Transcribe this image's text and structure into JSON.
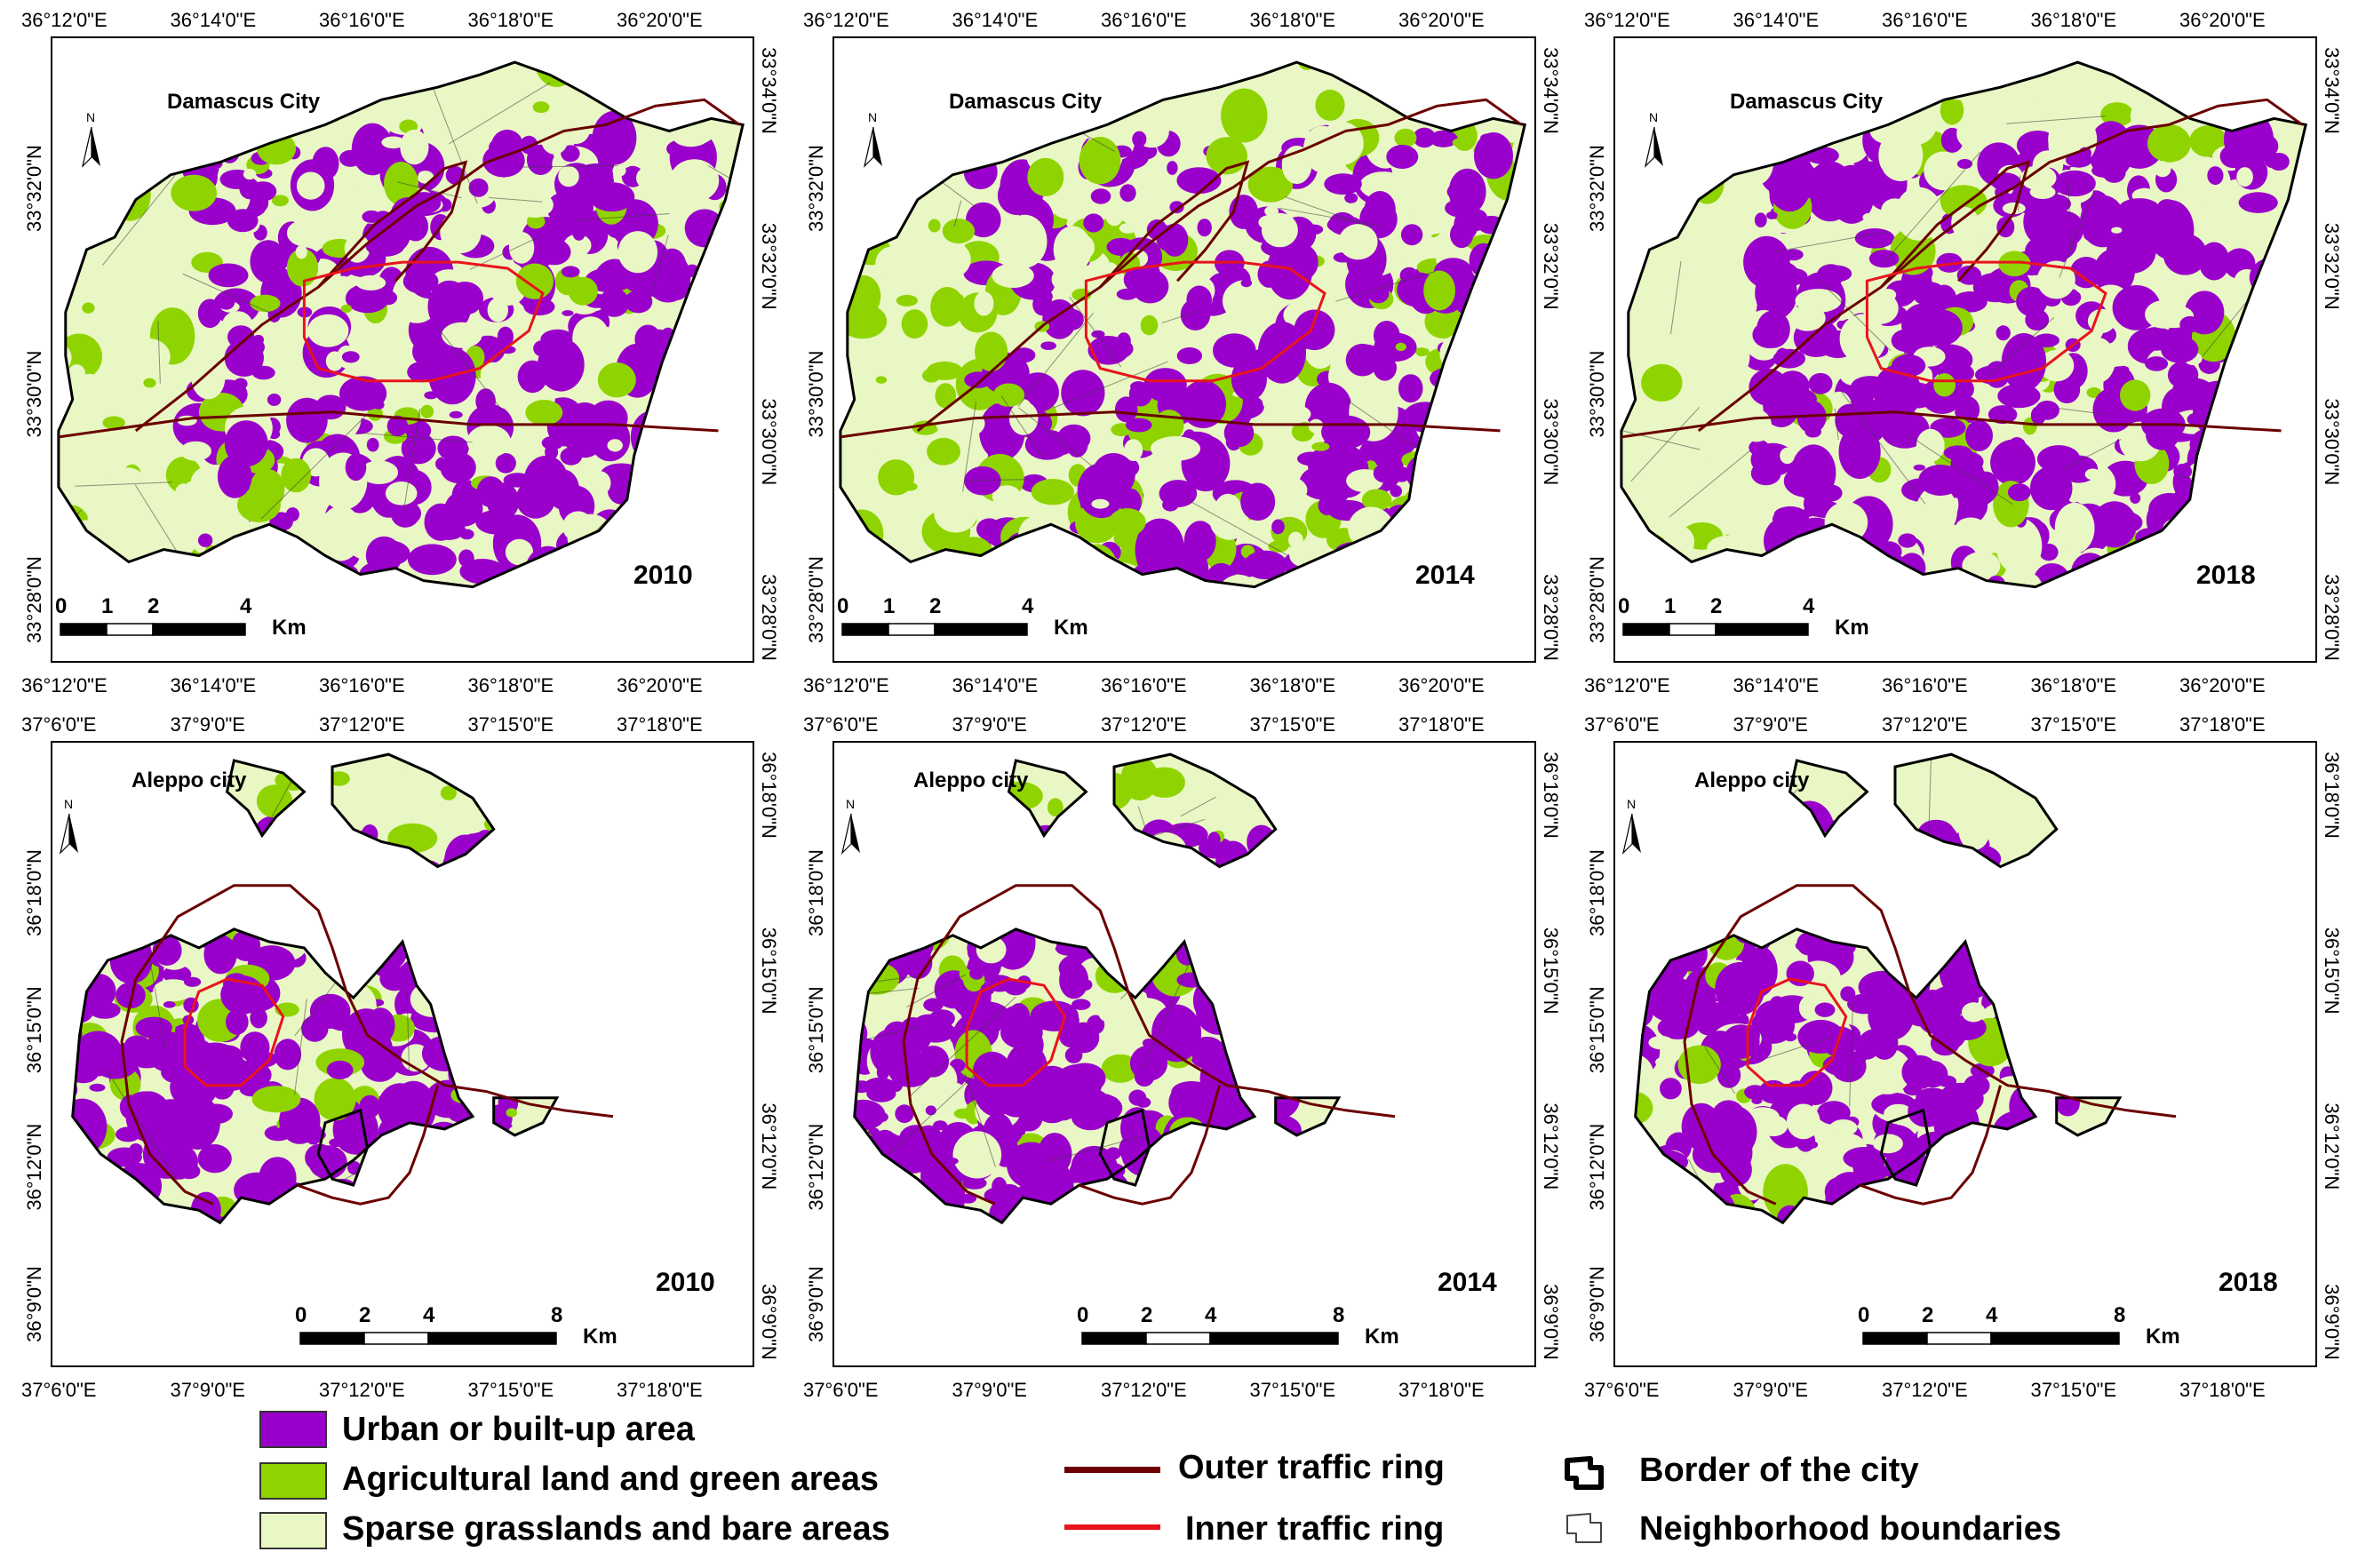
{
  "map_panels": [
    {
      "city": "Damascus City",
      "year": "2010",
      "kind": "dam",
      "top_ticks": [
        "36°12'0\"E",
        "36°14'0\"E",
        "36°16'0\"E",
        "36°18'0\"E",
        "36°20'0\"E"
      ],
      "bottom_ticks": [
        "36°12'0\"E",
        "36°14'0\"E",
        "36°16'0\"E",
        "36°18'0\"E",
        "36°20'0\"E"
      ],
      "left_ticks": [
        "33°32'0\"N",
        "33°30'0\"N",
        "33°28'0\"N"
      ],
      "right_ticks": [
        "33°34'0\"N",
        "33°32'0\"N",
        "33°30'0\"N",
        "33°28'0\"N"
      ],
      "scale": {
        "labels": [
          "0",
          "1",
          "2",
          "4"
        ],
        "unit": "Km"
      }
    },
    {
      "city": "Damascus City",
      "year": "2014",
      "kind": "dam",
      "top_ticks": [
        "36°12'0\"E",
        "36°14'0\"E",
        "36°16'0\"E",
        "36°18'0\"E",
        "36°20'0\"E"
      ],
      "bottom_ticks": [
        "36°12'0\"E",
        "36°14'0\"E",
        "36°16'0\"E",
        "36°18'0\"E",
        "36°20'0\"E"
      ],
      "left_ticks": [
        "33°32'0\"N",
        "33°30'0\"N",
        "33°28'0\"N"
      ],
      "right_ticks": [
        "33°34'0\"N",
        "33°32'0\"N",
        "33°30'0\"N",
        "33°28'0\"N"
      ],
      "scale": {
        "labels": [
          "0",
          "1",
          "2",
          "4"
        ],
        "unit": "Km"
      }
    },
    {
      "city": "Damascus City",
      "year": "2018",
      "kind": "dam",
      "top_ticks": [
        "36°12'0\"E",
        "36°14'0\"E",
        "36°16'0\"E",
        "36°18'0\"E",
        "36°20'0\"E"
      ],
      "bottom_ticks": [
        "36°12'0\"E",
        "36°14'0\"E",
        "36°16'0\"E",
        "36°18'0\"E",
        "36°20'0\"E"
      ],
      "left_ticks": [
        "33°32'0\"N",
        "33°30'0\"N",
        "33°28'0\"N"
      ],
      "right_ticks": [
        "33°34'0\"N",
        "33°32'0\"N",
        "33°30'0\"N",
        "33°28'0\"N"
      ],
      "scale": {
        "labels": [
          "0",
          "1",
          "2",
          "4"
        ],
        "unit": "Km"
      }
    },
    {
      "city": "Aleppo city",
      "year": "2010",
      "kind": "alp",
      "top_ticks": [
        "37°6'0\"E",
        "37°9'0\"E",
        "37°12'0\"E",
        "37°15'0\"E",
        "37°18'0\"E"
      ],
      "bottom_ticks": [
        "37°6'0\"E",
        "37°9'0\"E",
        "37°12'0\"E",
        "37°15'0\"E",
        "37°18'0\"E"
      ],
      "left_ticks": [
        "36°18'0\"N",
        "36°15'0\"N",
        "36°12'0\"N",
        "36°9'0\"N"
      ],
      "right_ticks": [
        "36°18'0\"N",
        "36°15'0\"N",
        "36°12'0\"N",
        "36°9'0\"N"
      ],
      "scale": {
        "labels": [
          "0",
          "2",
          "4",
          "8"
        ],
        "unit": "Km"
      }
    },
    {
      "city": "Aleppo city",
      "year": "2014",
      "kind": "alp",
      "top_ticks": [
        "37°6'0\"E",
        "37°9'0\"E",
        "37°12'0\"E",
        "37°15'0\"E",
        "37°18'0\"E"
      ],
      "bottom_ticks": [
        "37°6'0\"E",
        "37°9'0\"E",
        "37°12'0\"E",
        "37°15'0\"E",
        "37°18'0\"E"
      ],
      "left_ticks": [
        "36°18'0\"N",
        "36°15'0\"N",
        "36°12'0\"N",
        "36°9'0\"N"
      ],
      "right_ticks": [
        "36°18'0\"N",
        "36°15'0\"N",
        "36°12'0\"N",
        "36°9'0\"N"
      ],
      "scale": {
        "labels": [
          "0",
          "2",
          "4",
          "8"
        ],
        "unit": "Km"
      }
    },
    {
      "city": "Aleppo city",
      "year": "2018",
      "kind": "alp",
      "top_ticks": [
        "37°6'0\"E",
        "37°9'0\"E",
        "37°12'0\"E",
        "37°15'0\"E",
        "37°18'0\"E"
      ],
      "bottom_ticks": [
        "37°6'0\"E",
        "37°9'0\"E",
        "37°12'0\"E",
        "37°15'0\"E",
        "37°18'0\"E"
      ],
      "left_ticks": [
        "36°18'0\"N",
        "36°15'0\"N",
        "36°12'0\"N",
        "36°9'0\"N"
      ],
      "right_ticks": [
        "36°18'0\"N",
        "36°15'0\"N",
        "36°12'0\"N",
        "36°9'0\"N"
      ],
      "scale": {
        "labels": [
          "0",
          "2",
          "4",
          "8"
        ],
        "unit": "Km"
      }
    }
  ],
  "north_arrow_label": "N",
  "legend": {
    "urban": "Urban or built-up area",
    "agri": "Agricultural land and green areas",
    "sparse": "Sparse grasslands and bare areas",
    "outer": "Outer traffic ring",
    "inner": "Inner traffic ring",
    "border": "Border of the city",
    "neigh": "Neighborhood boundaries"
  },
  "colors": {
    "urban": "#9a00cc",
    "agri": "#8fd400",
    "sparse": "#e9f7c4",
    "outer_ring": "#6b0000",
    "inner_ring": "#e8141c",
    "border": "#000000"
  },
  "land_cover_share": {
    "Damascus City": {
      "2010": {
        "urban": 0.48,
        "agri": 0.14,
        "sparse": 0.38
      },
      "2014": {
        "urban": 0.38,
        "agri": 0.27,
        "sparse": 0.35
      },
      "2018": {
        "urban": 0.52,
        "agri": 0.13,
        "sparse": 0.35
      }
    },
    "Aleppo city": {
      "2010": {
        "urban": 0.7,
        "agri": 0.18,
        "sparse": 0.12
      },
      "2014": {
        "urban": 0.66,
        "agri": 0.2,
        "sparse": 0.14
      },
      "2018": {
        "urban": 0.63,
        "agri": 0.08,
        "sparse": 0.29
      }
    }
  }
}
